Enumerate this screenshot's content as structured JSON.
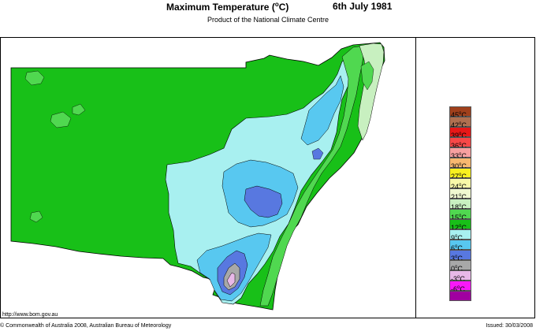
{
  "header": {
    "title_pre": "Maximum Temperature (",
    "title_deg": "o",
    "title_post": "C)",
    "date": "6th July 1981",
    "subtitle": "Product of the National Climate Centre"
  },
  "legend": [
    {
      "label": "45",
      "color": "#a0401c"
    },
    {
      "label": "42",
      "color": "#b07050"
    },
    {
      "label": "39",
      "color": "#e81818"
    },
    {
      "label": "36",
      "color": "#f84848"
    },
    {
      "label": "33",
      "color": "#f8a0a0"
    },
    {
      "label": "30",
      "color": "#f8b870"
    },
    {
      "label": "27",
      "color": "#f8f020"
    },
    {
      "label": "24",
      "color": "#f8f8a8"
    },
    {
      "label": "21",
      "color": "#f0f8d0"
    },
    {
      "label": "18",
      "color": "#c8f0c0"
    },
    {
      "label": "15",
      "color": "#50d850"
    },
    {
      "label": "12",
      "color": "#18c018"
    },
    {
      "label": "9",
      "color": "#a8f0f0"
    },
    {
      "label": "6",
      "color": "#58c8f0"
    },
    {
      "label": "3",
      "color": "#5878e0"
    },
    {
      "label": "0",
      "color": "#a8a8a8"
    },
    {
      "label": "-3",
      "color": "#e8b8e8"
    },
    {
      "label": "-6",
      "color": "#f818f8"
    },
    {
      "label": "",
      "color": "#a000a0"
    }
  ],
  "legend_unit": "C",
  "legend_deg": "o",
  "footer": {
    "url": "http://www.bom.gov.au",
    "copyright": "© Commonwealth of Australia 2008, Australian Bureau of Meteorology",
    "issued": "Issued: 30/03/2008"
  }
}
